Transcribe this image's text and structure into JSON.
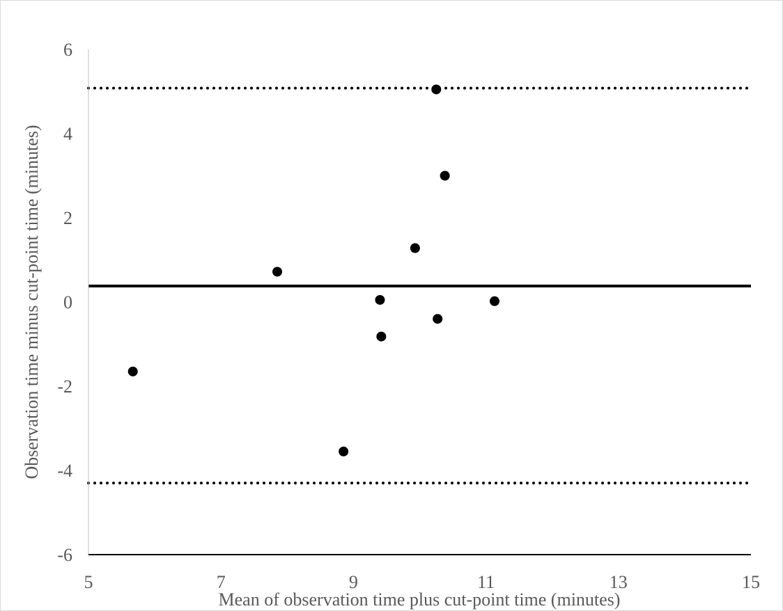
{
  "chart_data": {
    "type": "scatter",
    "title": "",
    "xlabel": "Mean of observation time plus cut-point time  (minutes)",
    "ylabel": "Observation time minus cut-point time  (minutes)",
    "xlim": [
      5,
      15
    ],
    "ylim": [
      -6,
      6
    ],
    "xticks": [
      5,
      7,
      9,
      11,
      13,
      15
    ],
    "yticks": [
      -6,
      -4,
      -2,
      0,
      2,
      4,
      6
    ],
    "xtick_labels": [
      "5",
      "7",
      "9",
      "11",
      "13",
      "15"
    ],
    "ytick_labels": [
      "-6",
      "-4",
      "-2",
      "0",
      "2",
      "4",
      "6"
    ],
    "grid": false,
    "legend": "none",
    "points": [
      {
        "x": 5.67,
        "y": -1.65
      },
      {
        "x": 7.85,
        "y": 0.72
      },
      {
        "x": 8.85,
        "y": -3.55
      },
      {
        "x": 9.4,
        "y": 0.05
      },
      {
        "x": 9.42,
        "y": -0.82
      },
      {
        "x": 9.93,
        "y": 1.28
      },
      {
        "x": 10.25,
        "y": 5.05
      },
      {
        "x": 10.27,
        "y": -0.4
      },
      {
        "x": 10.38,
        "y": 3.0
      },
      {
        "x": 11.13,
        "y": 0.02
      }
    ],
    "reference_lines": [
      {
        "y": 0.38,
        "style": "solid"
      },
      {
        "y": 5.08,
        "style": "dotted"
      },
      {
        "y": -4.3,
        "style": "dotted"
      }
    ],
    "colors": {
      "points": "#000000",
      "lines": "#000000",
      "axis": "#000000",
      "text": "#595959"
    }
  }
}
